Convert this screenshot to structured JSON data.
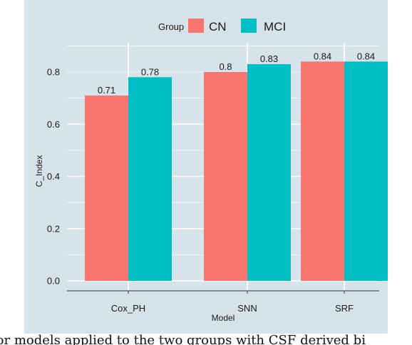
{
  "chart_data": {
    "type": "bar",
    "categories": [
      "Cox_PH",
      "SNN",
      "SRF"
    ],
    "series": [
      {
        "name": "CN",
        "values": [
          0.71,
          0.8,
          0.84
        ],
        "color": "#f8766d"
      },
      {
        "name": "MCI",
        "values": [
          0.78,
          0.83,
          0.84
        ],
        "color": "#00bfc4"
      }
    ],
    "data_labels": [
      [
        "0.71",
        "0.78"
      ],
      [
        "0.8",
        "0.83"
      ],
      [
        "0.84",
        "0.84"
      ]
    ],
    "xlabel": "Model",
    "ylabel": "C_Index",
    "ylim": [
      0,
      0.86
    ],
    "yticks": [
      "0.0",
      "0.2",
      "0.4",
      "0.6",
      "0.8"
    ],
    "legend": {
      "title": "Group",
      "position": "top"
    },
    "grid": true,
    "background": "#d6e3ea"
  },
  "caption": "for models applied to the two groups with CSF derived bi"
}
